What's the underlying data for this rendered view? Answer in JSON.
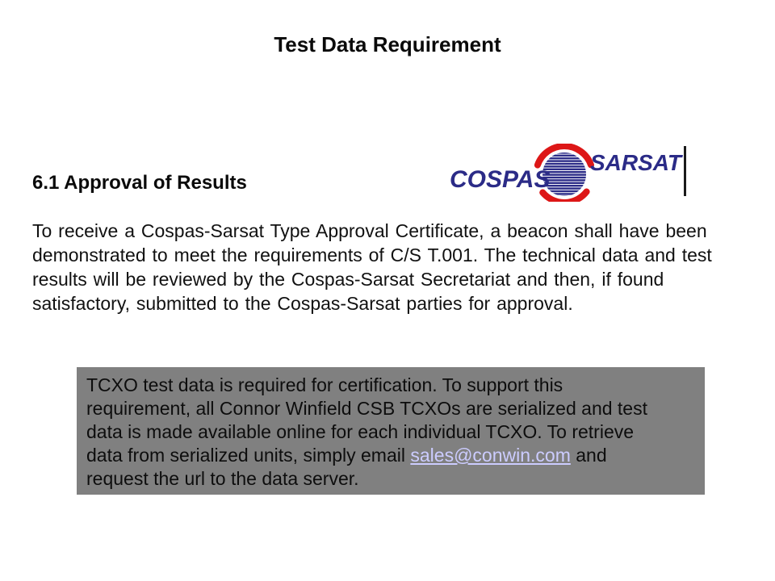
{
  "slide": {
    "title": "Test Data Requirement",
    "heading": "6.1 Approval of Results",
    "paragraph_lines": [
      "To receive a Cospas-Sarsat Type Approval Certificate, a beacon shall have been",
      "demonstrated to meet the requirements of C/S T.001. The technical data and test",
      "results will be reviewed by the Cospas-Sarsat Secretariat and then, if found",
      "satisfactory, submitted to the Cospas-Sarsat parties for approval."
    ],
    "note_box": {
      "lines": [
        "TCXO test data is required for certification. To support this",
        "requirement, all Connor Winfield CSB TCXOs are serialized and test",
        "data is made available online for each individual TCXO. To retrieve"
      ],
      "line4_prefix": "data from serialized units, simply email ",
      "link_text": "sales@conwin.com",
      "line4_suffix": " and",
      "line5": "request the url to the data server.",
      "background_color": "#808080",
      "text_color": "#0d0d0d",
      "link_color": "#ccccff"
    },
    "logo": {
      "cospas": "COSPAS",
      "sarsat": "SARSAT",
      "navy": "#2b2b87",
      "red": "#dd1717",
      "bar_color": "#1a1a1a"
    }
  }
}
